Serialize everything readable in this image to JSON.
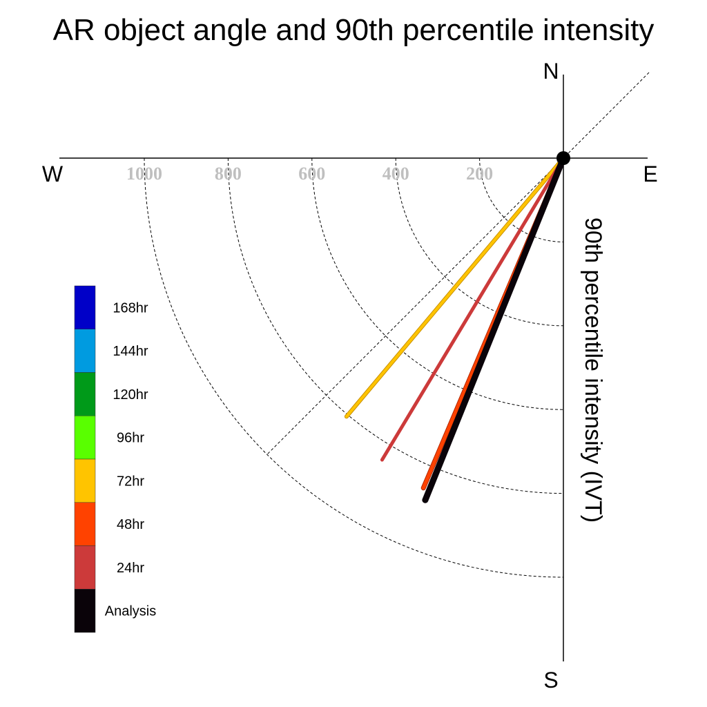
{
  "chart_data": {
    "type": "line",
    "title": "AR object angle and 90th percentile intensity",
    "ylabel": "90th percentile intensity (IVT)",
    "directions": {
      "north": "N",
      "south": "S",
      "east": "E",
      "west": "W"
    },
    "radial_ticks": [
      200,
      400,
      600,
      800,
      1000
    ],
    "radial_range": [
      0,
      1200
    ],
    "grid": "dashed arcs every 200 in the southwest quadrant plus a dashed diagonal",
    "legend_position": "left",
    "legend": [
      {
        "label": "168hr",
        "color": "#0000c8"
      },
      {
        "label": "144hr",
        "color": "#009be0"
      },
      {
        "label": "120hr",
        "color": "#009a19"
      },
      {
        "label": "96hr",
        "color": "#59ff00"
      },
      {
        "label": "72hr",
        "color": "#ffc400"
      },
      {
        "label": "48hr",
        "color": "#ff4200"
      },
      {
        "label": "24hr",
        "color": "#cc3a3a"
      },
      {
        "label": "Analysis",
        "color": "#0a0309"
      }
    ],
    "series": [
      {
        "name": "72hr",
        "color": "#ffc400",
        "angle_deg_from_south": 40,
        "intensity": 805
      },
      {
        "name": "24hr",
        "color": "#cc3a3a",
        "angle_deg_from_south": 31,
        "intensity": 840
      },
      {
        "name": "48hr",
        "color": "#ff4200",
        "angle_deg_from_south": 23,
        "intensity": 855
      },
      {
        "name": "Analysis",
        "color": "#0a0309",
        "angle_deg_from_south": 22,
        "intensity": 880
      }
    ]
  }
}
